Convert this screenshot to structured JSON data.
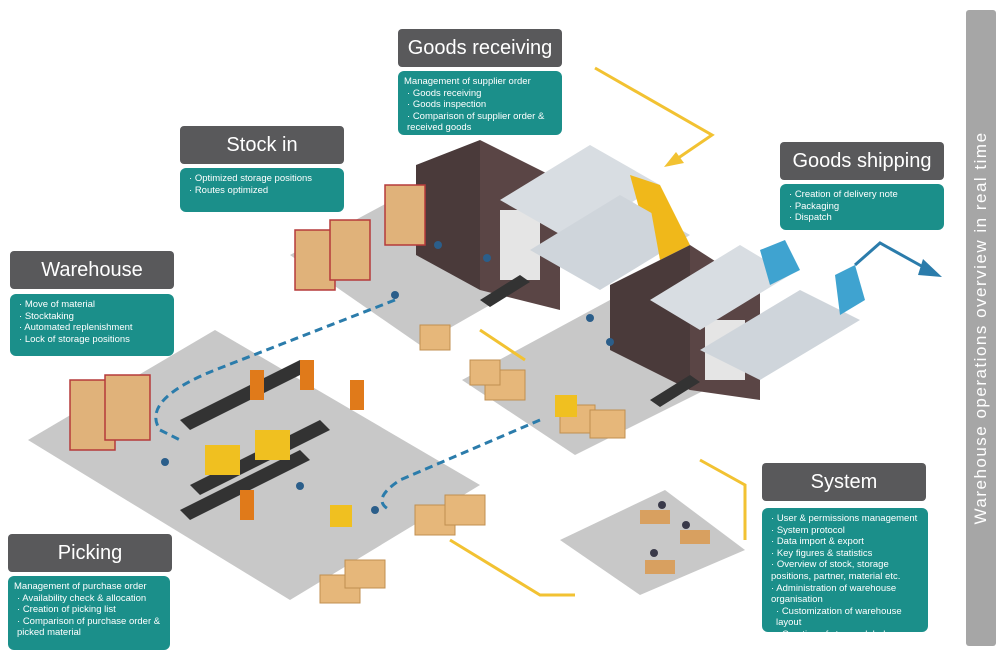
{
  "sidebar": {
    "label": "Warehouse operations overview in real time"
  },
  "sections": {
    "goods_receiving": {
      "title": "Goods receiving",
      "heading": "Management of supplier order",
      "items": [
        "Goods receiving",
        "Goods inspection",
        "Comparison of supplier order & received goods"
      ]
    },
    "stock_in": {
      "title": "Stock in",
      "items": [
        "Optimized storage positions",
        "Routes optimized"
      ]
    },
    "goods_shipping": {
      "title": "Goods shipping",
      "items": [
        "Creation of delivery note",
        "Packaging",
        "Dispatch"
      ]
    },
    "warehouse": {
      "title": "Warehouse",
      "items": [
        "Move of material",
        "Stocktaking",
        "Automated replenishment",
        "Lock of storage positions"
      ]
    },
    "picking": {
      "title": "Picking",
      "heading": "Management of purchase order",
      "items": [
        "Availability check & allocation",
        "Creation of picking list",
        "Comparison of purchase order & picked material"
      ]
    },
    "system": {
      "title": "System",
      "items": [
        "User & permissions management",
        "System protocol",
        "Data import & export",
        "Key figures & statistics",
        "Overview of stock, storage positions, partner, material etc.",
        "Administration of warehouse organisation"
      ],
      "subitems": [
        "Customization of warehouse layout",
        "Creation of storage labels"
      ]
    }
  },
  "colors": {
    "title_bg": "#59595b",
    "box_bg": "#1b8f8a",
    "sidebar_bg": "#a6a6a6",
    "floor": "#c9c9c9",
    "route_yellow": "#f2c232",
    "route_blue": "#2b7cab"
  }
}
